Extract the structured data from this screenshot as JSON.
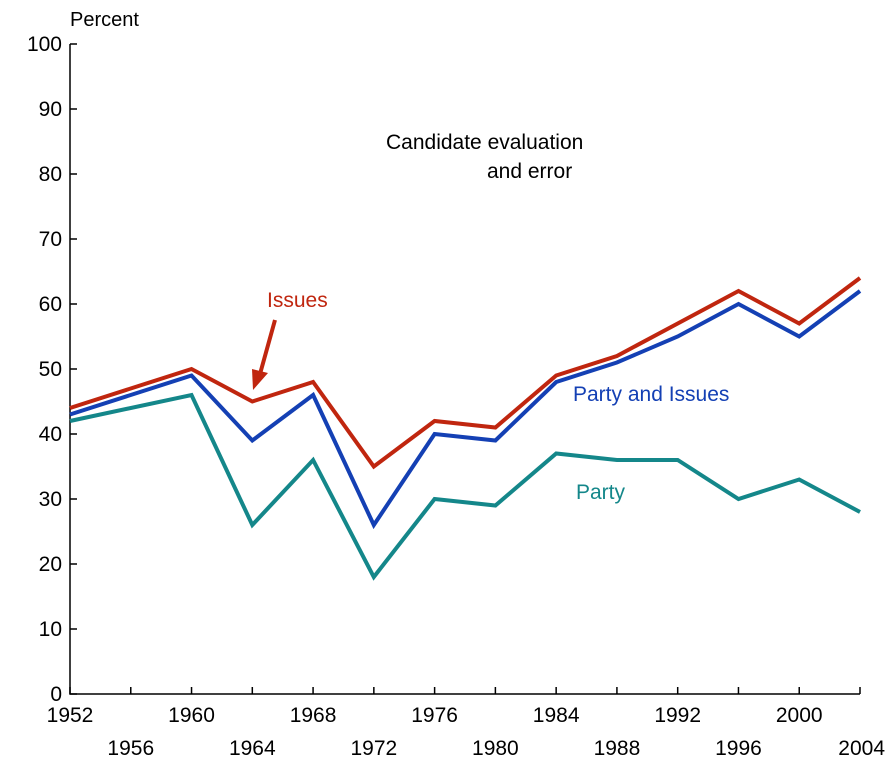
{
  "chart_data": {
    "type": "line",
    "ylabel": "Percent",
    "ylim": [
      0,
      100
    ],
    "xlim": [
      1952,
      2004
    ],
    "yticks": [
      0,
      10,
      20,
      30,
      40,
      50,
      60,
      70,
      80,
      90,
      100
    ],
    "xticks_top": [
      1952,
      1960,
      1968,
      1976,
      1984,
      1992,
      2000
    ],
    "xticks_bottom": [
      1956,
      1964,
      1972,
      1980,
      1988,
      1996,
      2004
    ],
    "x": [
      1952,
      1960,
      1964,
      1968,
      1972,
      1976,
      1980,
      1984,
      1988,
      1992,
      1996,
      2000,
      2004
    ],
    "series": [
      {
        "name": "Issues",
        "color": "#c0260f",
        "values": [
          44,
          50,
          45,
          48,
          35,
          42,
          41,
          49,
          52,
          57,
          62,
          57,
          64
        ]
      },
      {
        "name": "Party and Issues",
        "color": "#1440b4",
        "values": [
          43,
          49,
          39,
          46,
          26,
          40,
          39,
          48,
          51,
          55,
          60,
          55,
          62
        ]
      },
      {
        "name": "Party",
        "color": "#14878a",
        "values": [
          42,
          46,
          26,
          36,
          18,
          30,
          29,
          37,
          36,
          36,
          30,
          33,
          28
        ]
      }
    ],
    "annotations": {
      "region_line1": "Candidate evaluation",
      "region_line2": "and error",
      "issues_label": "Issues",
      "party_issues_label": "Party and Issues",
      "party_label": "Party"
    },
    "grid": false,
    "legend": "none"
  }
}
